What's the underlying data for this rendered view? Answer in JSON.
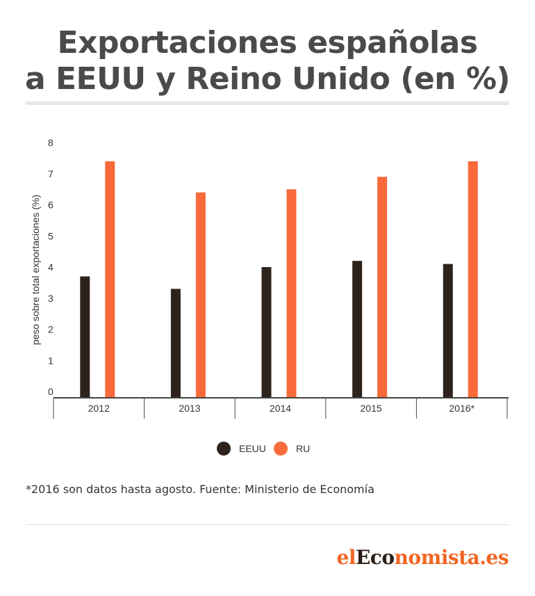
{
  "title_lines": [
    "Exportaciones españolas",
    "a EEUU y Reino Unido (en %)"
  ],
  "footnote": "*2016 son datos hasta agosto. Fuente: Ministerio de Economía",
  "logo": {
    "part1": "el",
    "part2": "Eco",
    "part3": "nomista.es"
  },
  "colors": {
    "eeuu": "#2e221c",
    "ru": "#f96a3a",
    "axis": "#444444",
    "text": "#333333"
  },
  "chart_data": {
    "type": "bar",
    "title": "Exportaciones españolas a EEUU y Reino Unido (en %)",
    "categories": [
      "2012",
      "2013",
      "2014",
      "2015",
      "2016*"
    ],
    "series": [
      {
        "name": "EEUU",
        "values": [
          3.9,
          3.5,
          4.2,
          4.4,
          4.3
        ]
      },
      {
        "name": "RU",
        "values": [
          7.6,
          6.6,
          6.7,
          7.1,
          7.6
        ]
      }
    ],
    "xlabel": "",
    "ylabel": "peso sobre total exportaciones (%)",
    "ylim": [
      0,
      8
    ],
    "yticks": [
      0,
      1,
      2,
      3,
      4,
      5,
      6,
      7,
      8
    ],
    "grid": false,
    "legend_position": "bottom"
  }
}
